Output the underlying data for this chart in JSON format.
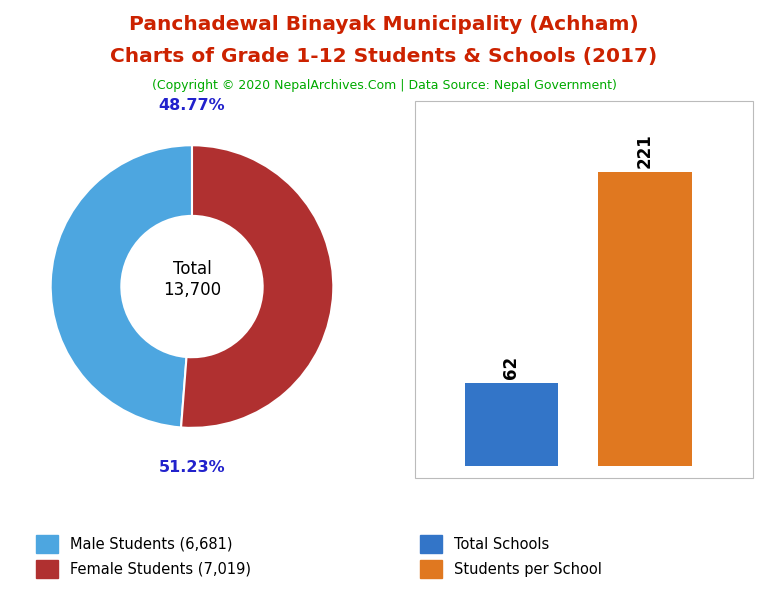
{
  "title_line1": "Panchadewal Binayak Municipality (Achham)",
  "title_line2": "Charts of Grade 1-12 Students & Schools (2017)",
  "subtitle": "(Copyright © 2020 NepalArchives.Com | Data Source: Nepal Government)",
  "title_color": "#cc2200",
  "subtitle_color": "#00aa00",
  "donut_values": [
    6681,
    7019
  ],
  "donut_labels": [
    "Male Students (6,681)",
    "Female Students (7,019)"
  ],
  "donut_colors": [
    "#4da6e0",
    "#b03030"
  ],
  "donut_pct_labels": [
    "48.77%",
    "51.23%"
  ],
  "donut_pct_color": "#2222cc",
  "donut_center_text": "Total\n13,700",
  "bar_categories": [
    "Total Schools",
    "Students per School"
  ],
  "bar_values": [
    62,
    221
  ],
  "bar_colors": [
    "#3375c8",
    "#e07820"
  ],
  "bar_label_color": "#000000",
  "background_color": "#ffffff"
}
